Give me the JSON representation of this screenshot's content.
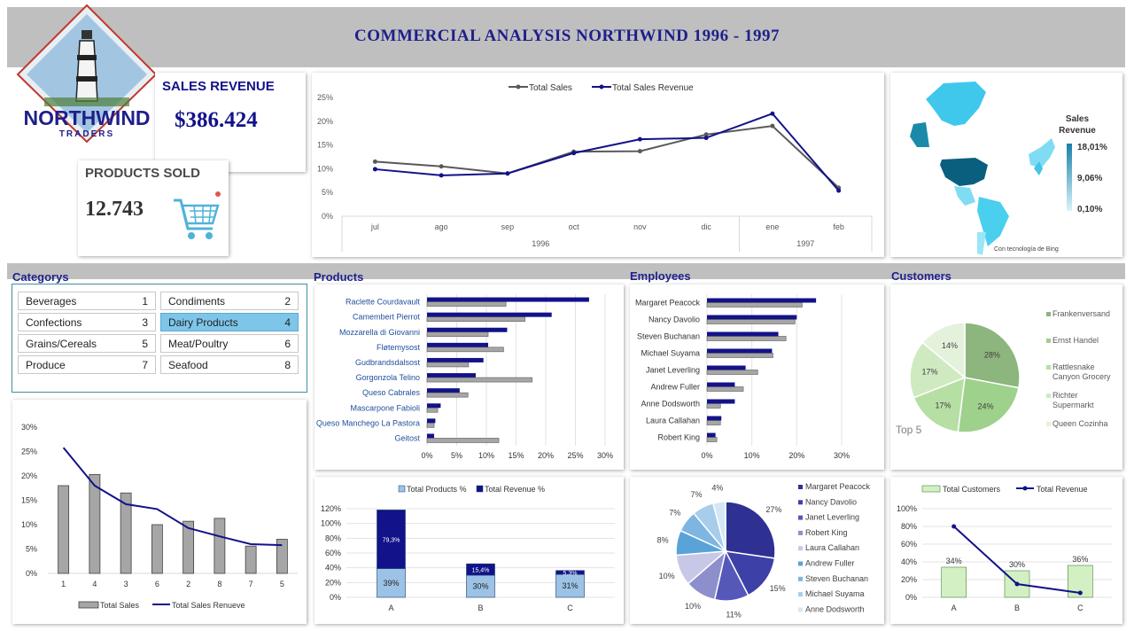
{
  "header": {
    "title": "COMMERCIAL ANALYSIS NORTHWIND 1996 - 1997"
  },
  "logo": {
    "name": "NORTHWIND",
    "sub": "TRADERS"
  },
  "kpis": {
    "revenue_label": "SALES REVENUE",
    "revenue_value": "$386.424",
    "products_label": "PRODUCTS SOLD",
    "products_value": "12.743"
  },
  "sections": {
    "categories": "Categorys",
    "products": "Products",
    "employees": "Employees",
    "customers": "Customers"
  },
  "slicer": {
    "items": [
      {
        "label": "Beverages",
        "num": "1",
        "selected": false
      },
      {
        "label": "Condiments",
        "num": "2",
        "selected": false
      },
      {
        "label": "Confections",
        "num": "3",
        "selected": false
      },
      {
        "label": "Dairy Products",
        "num": "4",
        "selected": true
      },
      {
        "label": "Grains/Cereals",
        "num": "5",
        "selected": false
      },
      {
        "label": "Meat/Poultry",
        "num": "6",
        "selected": false
      },
      {
        "label": "Produce",
        "num": "7",
        "selected": false
      },
      {
        "label": "Seafood",
        "num": "8",
        "selected": false
      }
    ]
  },
  "map": {
    "legend_title_1": "Sales",
    "legend_title_2": "Revenue",
    "max": "18,01%",
    "mid": "9,06%",
    "min": "0,10%",
    "credit": "Con tecnología de Bing",
    "colors": {
      "high": "#1b7fa8",
      "low": "#d8f4fb"
    }
  },
  "chart_data": [
    {
      "id": "trend",
      "type": "line",
      "categories": [
        "jul",
        "ago",
        "sep",
        "oct",
        "nov",
        "dic",
        "ene",
        "feb"
      ],
      "groups": [
        {
          "label": "1996",
          "span": 6
        },
        {
          "label": "1997",
          "span": 2
        }
      ],
      "ylim": [
        0,
        25
      ],
      "yticks": [
        "0%",
        "5%",
        "10%",
        "15%",
        "20%",
        "25%"
      ],
      "series": [
        {
          "name": "Total Sales",
          "color": "#595959",
          "values": [
            11.5,
            10.5,
            9,
            13.6,
            13.7,
            17.2,
            19,
            6
          ]
        },
        {
          "name": "Total Sales Revenue",
          "color": "#12128a",
          "values": [
            9.9,
            8.6,
            9,
            13.3,
            16.2,
            16.5,
            21.6,
            5.4
          ]
        }
      ]
    },
    {
      "id": "category",
      "type": "bar",
      "categories": [
        "1",
        "4",
        "3",
        "6",
        "2",
        "8",
        "7",
        "5"
      ],
      "ylim": [
        0,
        30
      ],
      "yticks": [
        "0%",
        "5%",
        "10%",
        "15%",
        "20%",
        "25%",
        "30%"
      ],
      "series": [
        {
          "name": "Total Sales",
          "color": "#a6a6a6",
          "values": [
            18,
            20.3,
            16.5,
            10,
            10.7,
            11.3,
            5.6,
            7
          ]
        },
        {
          "name": "Total Sales Renueve",
          "color": "#12128a",
          "values": [
            25.8,
            18,
            14.2,
            13.2,
            9.3,
            7.6,
            6,
            5.8
          ]
        }
      ]
    },
    {
      "id": "products",
      "type": "bar",
      "categories": [
        "Raclette Courdavault",
        "Camembert Pierrot",
        "Mozzarella di Giovanni",
        "Fløtemysost",
        "Gudbrandsdalsost",
        "Gorgonzola Telino",
        "Queso Cabrales",
        "Mascarpone Fabioli",
        "Queso Manchego La Pastora",
        "Geitost"
      ],
      "xlim": [
        0,
        30
      ],
      "xticks": [
        "0%",
        "5%",
        "10%",
        "15%",
        "20%",
        "25%",
        "30%"
      ],
      "series": [
        {
          "name": "Total Revenue",
          "color": "#12128a",
          "values": [
            27.3,
            21,
            13.5,
            10.3,
            9.5,
            8.2,
            5.5,
            2.3,
            1.4,
            1.2
          ]
        },
        {
          "name": "Total Sales",
          "color": "#a6a6a6",
          "values": [
            13.3,
            16.5,
            10.3,
            12.9,
            7,
            17.7,
            6.9,
            1.8,
            1.2,
            12.1
          ]
        }
      ]
    },
    {
      "id": "employees",
      "type": "bar",
      "categories": [
        "Margaret Peacock",
        "Nancy Davolio",
        "Steven Buchanan",
        "Michael Suyama",
        "Janet Leverling",
        "Andrew Fuller",
        "Anne Dodsworth",
        "Laura Callahan",
        "Robert King"
      ],
      "xlim": [
        0,
        30
      ],
      "xticks": [
        "0%",
        "10%",
        "20%",
        "30%"
      ],
      "series": [
        {
          "name": "Total Revenue",
          "color": "#12128a",
          "values": [
            24.3,
            20,
            15.9,
            14.5,
            8.6,
            6.2,
            6.2,
            3.2,
            1.9
          ]
        },
        {
          "name": "Total Sales",
          "color": "#a6a6a6",
          "values": [
            21.2,
            19.6,
            17.6,
            14.7,
            11.3,
            8.1,
            3,
            3,
            2.2
          ]
        }
      ]
    },
    {
      "id": "customers_pie",
      "type": "pie",
      "labels": [
        "Frankenversand",
        "Ernst Handel",
        "Rattlesnake Canyon Grocery",
        "Richter Supermarkt",
        "Queen Cozinha"
      ],
      "legend_lines": [
        [
          "Frankenversand"
        ],
        [
          "Ernst Handel"
        ],
        [
          "Rattlesnake",
          "Canyon Grocery"
        ],
        [
          "Richter",
          "Supermarkt"
        ],
        [
          "Queen Cozinha"
        ]
      ],
      "values": [
        28,
        24,
        17,
        17,
        14
      ],
      "value_labels": [
        "28%",
        "24%",
        "17%",
        "17%",
        "14%"
      ],
      "colors": [
        "#8db57e",
        "#9ed18c",
        "#b6dfa4",
        "#cfeac0",
        "#e4f2dc"
      ],
      "note": "Top 5"
    },
    {
      "id": "abc_products",
      "type": "bar",
      "categories": [
        "A",
        "B",
        "C"
      ],
      "ylim": [
        0,
        120
      ],
      "yticks": [
        "0%",
        "20%",
        "40%",
        "60%",
        "80%",
        "100%",
        "120%"
      ],
      "series": [
        {
          "name": "Total Products %",
          "color": "#9cc3e6",
          "values": [
            39,
            30,
            31
          ],
          "labels": [
            "39%",
            "30%",
            "31%"
          ]
        },
        {
          "name": "Total Revenue %",
          "color": "#12128a",
          "values": [
            79.3,
            15.4,
            5.3
          ],
          "labels": [
            "79,3%",
            "15,4%",
            "5,3%"
          ]
        }
      ]
    },
    {
      "id": "employees_pie",
      "type": "pie",
      "labels": [
        "Margaret Peacock",
        "Nancy Davolio",
        "Janet Leverling",
        "Robert King",
        "Laura Callahan",
        "Andrew Fuller",
        "Steven Buchanan",
        "Michael Suyama",
        "Anne Dodsworth"
      ],
      "values": [
        27,
        15,
        11,
        10,
        10,
        8,
        7,
        7,
        4
      ],
      "value_labels": [
        "27%",
        "15%",
        "11%",
        "10%",
        "10%",
        "8%",
        "7%",
        "7%",
        "4%"
      ],
      "colors": [
        "#2e3192",
        "#3d40a6",
        "#5558b8",
        "#8d8fcc",
        "#c7c8e6",
        "#5aa3d8",
        "#7eb6e1",
        "#a7cdea",
        "#d5e7f5"
      ]
    },
    {
      "id": "abc_customers",
      "type": "bar",
      "categories": [
        "A",
        "B",
        "C"
      ],
      "ylim": [
        0,
        100
      ],
      "yticks": [
        "0%",
        "20%",
        "40%",
        "60%",
        "80%",
        "100%"
      ],
      "series": [
        {
          "name": "Total Customers",
          "color": "#d3f0c4",
          "values": [
            34,
            30,
            36
          ],
          "labels": [
            "34%",
            "30%",
            "36%"
          ]
        },
        {
          "name": "Total Revenue",
          "color": "#12128a",
          "values": [
            80,
            15,
            5
          ]
        }
      ]
    }
  ]
}
